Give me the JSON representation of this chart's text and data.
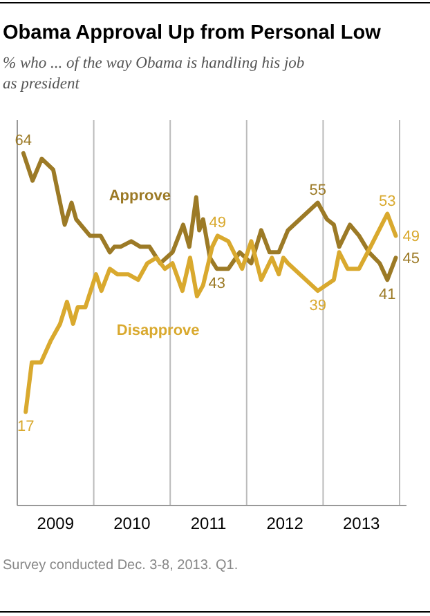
{
  "chart_data": {
    "type": "line",
    "title": "Obama Approval Up from Personal Low",
    "subtitle": "% who ... of the way Obama is handling his job as president",
    "annotations": [
      "Survey conducted Dec. 3-8, 2013. Q1."
    ],
    "xlim": [
      2009,
      2014
    ],
    "xticks": [
      {
        "value": 2009.5,
        "label": "2009"
      },
      {
        "value": 2010.5,
        "label": "2010"
      },
      {
        "value": 2011.5,
        "label": "2011"
      },
      {
        "value": 2012.5,
        "label": "2012"
      },
      {
        "value": 2013.5,
        "label": "2013"
      }
    ],
    "ylim": [
      0,
      70
    ],
    "tick_labels": "x",
    "marker": "none",
    "line_style": "solid",
    "ref_lines": [
      {
        "axis": "x",
        "value": 2010,
        "color": "#bbbbbb"
      },
      {
        "axis": "x",
        "value": 2011,
        "color": "#bbbbbb"
      },
      {
        "axis": "x",
        "value": 2012,
        "color": "#bbbbbb"
      },
      {
        "axis": "x",
        "value": 2013,
        "color": "#bbbbbb"
      },
      {
        "axis": "x",
        "value": 2014,
        "color": "#bbbbbb"
      }
    ],
    "series": [
      {
        "name": "Approve",
        "color": "#9c7a26",
        "x": [
          2009.08,
          2009.2,
          2009.32,
          2009.47,
          2009.62,
          2009.71,
          2009.77,
          2009.95,
          2010.09,
          2010.21,
          2010.27,
          2010.35,
          2010.49,
          2010.61,
          2010.73,
          2010.87,
          2011.03,
          2011.17,
          2011.25,
          2011.34,
          2011.38,
          2011.43,
          2011.52,
          2011.61,
          2011.76,
          2011.91,
          2012.06,
          2012.19,
          2012.3,
          2012.42,
          2012.54,
          2012.93,
          2013.05,
          2013.14,
          2013.21,
          2013.35,
          2013.47,
          2013.6,
          2013.74,
          2013.84,
          2013.95
        ],
        "values": [
          64,
          59,
          63,
          61,
          51,
          55,
          52,
          49,
          49,
          46,
          47,
          47,
          48,
          47,
          47,
          44,
          46,
          51,
          47,
          56,
          50,
          52,
          45,
          43,
          43,
          46,
          44,
          50,
          46,
          46,
          50,
          55,
          52,
          51,
          47,
          51,
          49,
          46,
          44,
          41,
          45
        ],
        "value_labels": [
          "64",
          null,
          null,
          null,
          null,
          null,
          null,
          null,
          null,
          null,
          null,
          null,
          null,
          null,
          null,
          null,
          null,
          null,
          null,
          null,
          null,
          null,
          null,
          "43",
          null,
          null,
          null,
          null,
          null,
          null,
          null,
          "55",
          null,
          null,
          null,
          null,
          null,
          null,
          null,
          "41",
          "45"
        ]
      },
      {
        "name": "Disapprove",
        "color": "#d9a92e",
        "x": [
          2009.11,
          2009.19,
          2009.31,
          2009.44,
          2009.56,
          2009.65,
          2009.73,
          2009.79,
          2009.89,
          2010.03,
          2010.1,
          2010.21,
          2010.31,
          2010.45,
          2010.58,
          2010.7,
          2010.82,
          2010.93,
          2011.03,
          2011.16,
          2011.26,
          2011.35,
          2011.43,
          2011.55,
          2011.62,
          2011.76,
          2011.94,
          2012.06,
          2012.19,
          2012.33,
          2012.42,
          2012.48,
          2012.54,
          2012.93,
          2013.14,
          2013.21,
          2013.32,
          2013.47,
          2013.62,
          2013.84,
          2013.95
        ],
        "values": [
          17,
          26,
          26,
          30,
          33,
          37,
          33,
          36,
          36,
          42,
          39,
          43,
          42,
          42,
          41,
          44,
          45,
          43,
          44,
          39,
          45,
          38,
          40,
          47,
          49,
          48,
          43,
          48,
          41,
          45,
          42,
          45,
          44,
          39,
          41,
          46,
          43,
          43,
          47,
          53,
          49
        ],
        "value_labels": [
          "17",
          null,
          null,
          null,
          null,
          null,
          null,
          null,
          null,
          null,
          null,
          null,
          null,
          null,
          null,
          null,
          null,
          null,
          null,
          null,
          null,
          null,
          null,
          null,
          "49",
          null,
          null,
          null,
          null,
          null,
          null,
          null,
          null,
          "39",
          null,
          null,
          null,
          null,
          null,
          "53",
          "49"
        ]
      }
    ]
  }
}
